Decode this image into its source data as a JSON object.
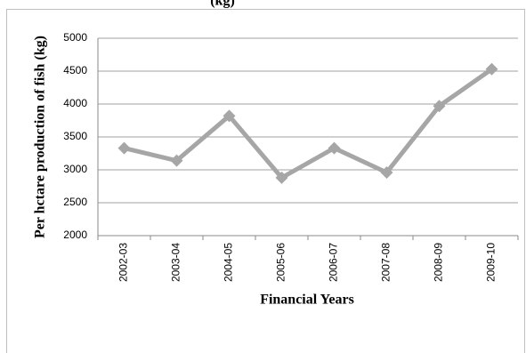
{
  "chart_data": {
    "type": "line",
    "title": "(kg)",
    "x_label": "Financial Years",
    "y_label": "Per hctare production of fish (kg)",
    "categories": [
      "2002-03",
      "2003-04",
      "2004-05",
      "2005-06",
      "2006-07",
      "2007-08",
      "2008-09",
      "2009-10"
    ],
    "series": [
      {
        "name": "Per hectare production",
        "color": "#a6a6a6",
        "values": [
          3330,
          3140,
          3820,
          2880,
          3330,
          2960,
          3970,
          4530
        ]
      }
    ],
    "ylim": [
      2000,
      5000
    ],
    "yticks": [
      2000,
      2500,
      3000,
      3500,
      4000,
      4500,
      5000
    ],
    "grid": true
  }
}
